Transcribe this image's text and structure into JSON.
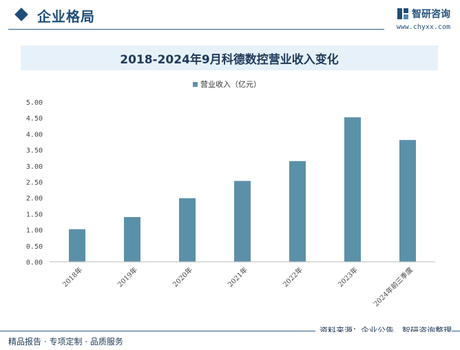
{
  "header": {
    "section_title": "企业格局",
    "brand_name": "智研咨询",
    "brand_url": "www.chyxx.com"
  },
  "footer": {
    "source": "资料来源：企业公告、智研咨询整理",
    "slogan": "精品报告 · 专项定制 · 品质服务"
  },
  "colors": {
    "bar": "#5b90a9",
    "accent": "#1f4e79"
  },
  "chart_data": {
    "type": "bar",
    "title": "2018-2024年9月科德数控营业收入变化",
    "categories": [
      "2018年",
      "2019年",
      "2020年",
      "2021年",
      "2022年",
      "2023年",
      "2024年前三季度"
    ],
    "series": [
      {
        "name": "营业收入（亿元）",
        "values": [
          1.02,
          1.4,
          1.99,
          2.53,
          3.15,
          4.52,
          3.81
        ]
      }
    ],
    "ylim": [
      0,
      5
    ],
    "yticks": [
      "0.00",
      "0.50",
      "1.00",
      "1.50",
      "2.00",
      "2.50",
      "3.00",
      "3.50",
      "4.00",
      "4.50",
      "5.00"
    ],
    "legend_position": "top-center",
    "grid": false
  }
}
